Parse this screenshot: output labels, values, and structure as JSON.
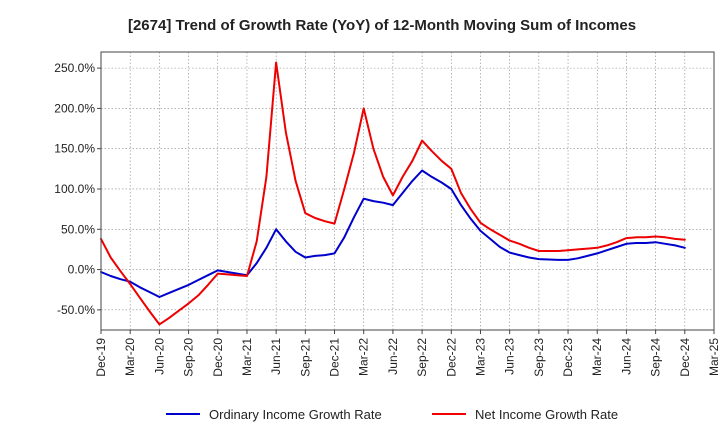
{
  "chart_data": {
    "type": "line",
    "title": "[2674]  Trend of Growth Rate (YoY) of 12-Month Moving Sum of Incomes",
    "xlabel": "",
    "ylabel": "",
    "ylim": [
      -75,
      270
    ],
    "grid": true,
    "legend_position": "bottom",
    "y_ticks": [
      -50,
      0,
      50,
      100,
      150,
      200,
      250
    ],
    "y_tick_labels": [
      "-50.0%",
      "0.0%",
      "50.0%",
      "100.0%",
      "150.0%",
      "200.0%",
      "250.0%"
    ],
    "x_tick_labels": [
      "Dec-19",
      "Mar-20",
      "Jun-20",
      "Sep-20",
      "Dec-20",
      "Mar-21",
      "Jun-21",
      "Sep-21",
      "Dec-21",
      "Mar-22",
      "Jun-22",
      "Sep-22",
      "Dec-22",
      "Mar-23",
      "Jun-23",
      "Sep-23",
      "Dec-23",
      "Mar-24",
      "Jun-24",
      "Sep-24",
      "Dec-24",
      "Mar-25"
    ],
    "x": [
      "Dec-19",
      "Jan-20",
      "Feb-20",
      "Mar-20",
      "Apr-20",
      "May-20",
      "Jun-20",
      "Jul-20",
      "Aug-20",
      "Sep-20",
      "Oct-20",
      "Nov-20",
      "Dec-20",
      "Jan-21",
      "Feb-21",
      "Mar-21",
      "Apr-21",
      "May-21",
      "Jun-21",
      "Jul-21",
      "Aug-21",
      "Sep-21",
      "Oct-21",
      "Nov-21",
      "Dec-21",
      "Jan-22",
      "Feb-22",
      "Mar-22",
      "Apr-22",
      "May-22",
      "Jun-22",
      "Jul-22",
      "Aug-22",
      "Sep-22",
      "Oct-22",
      "Nov-22",
      "Dec-22",
      "Jan-23",
      "Feb-23",
      "Mar-23",
      "Apr-23",
      "May-23",
      "Jun-23",
      "Jul-23",
      "Aug-23",
      "Sep-23",
      "Oct-23",
      "Nov-23",
      "Dec-23",
      "Jan-24",
      "Feb-24",
      "Mar-24",
      "Apr-24",
      "May-24",
      "Jun-24",
      "Jul-24",
      "Aug-24",
      "Sep-24",
      "Oct-24",
      "Nov-24",
      "Dec-24"
    ],
    "series": [
      {
        "name": "Ordinary Income Growth Rate",
        "color": "#0000cc",
        "values": [
          -3,
          -8,
          -12,
          -15,
          -22,
          -28,
          -34,
          -29,
          -24,
          -19,
          -13,
          -7,
          -1,
          -3,
          -5,
          -7,
          8,
          27,
          50,
          35,
          22,
          15,
          17,
          18,
          20,
          40,
          65,
          88,
          85,
          83,
          80,
          95,
          110,
          123,
          115,
          108,
          100,
          80,
          63,
          48,
          38,
          28,
          21,
          18,
          15,
          13,
          12.5,
          12,
          12,
          14,
          17,
          20,
          24,
          28,
          32,
          33,
          33,
          34,
          32,
          30,
          27
        ]
      },
      {
        "name": "Net Income Growth Rate",
        "color": "#ee0000",
        "values": [
          38,
          15,
          -2,
          -18,
          -35,
          -52,
          -68,
          -60,
          -51,
          -42,
          -32,
          -19,
          -5,
          -6,
          -7,
          -8,
          35,
          115,
          257,
          170,
          110,
          70,
          64,
          60,
          57,
          100,
          145,
          200,
          150,
          115,
          92,
          115,
          135,
          160,
          147,
          135,
          125,
          95,
          75,
          58,
          50,
          43,
          36,
          32,
          27,
          23,
          23,
          23,
          24,
          25,
          26,
          27,
          30,
          34,
          39,
          40,
          40,
          41,
          40,
          38,
          37
        ]
      }
    ]
  }
}
